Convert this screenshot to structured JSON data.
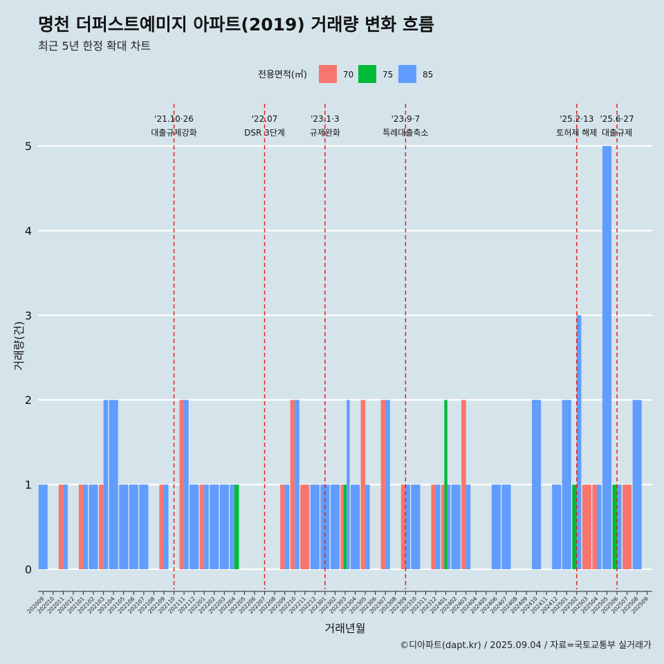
{
  "title": "명천 더퍼스트예미지 아파트(2019) 거래량 변화 흐름",
  "subtitle": "최근 5년 한정 확대 차트",
  "caption": "©디아파트(dapt.kr) / 2025.09.04 / 자료=국토교통부 실거래가",
  "colors": {
    "background": "#d5e3ea",
    "grid": "#ffffff",
    "event_line": "#e8201f",
    "70": "#f8766d",
    "75": "#00ba38",
    "85": "#619cff"
  },
  "chart_data": {
    "type": "bar",
    "stacking": "dodge",
    "xlabel": "거래년월",
    "ylabel": "거래량(건)",
    "ylim": [
      0,
      5
    ],
    "yticks": [
      0,
      1,
      2,
      3,
      4,
      5
    ],
    "grid": true,
    "legend": {
      "title": "전용면적(㎡)",
      "position": "top",
      "entries": [
        {
          "key": "70",
          "label": "70",
          "color": "#f8766d"
        },
        {
          "key": "75",
          "label": "75",
          "color": "#00ba38"
        },
        {
          "key": "85",
          "label": "85",
          "color": "#619cff"
        }
      ]
    },
    "categories": [
      "202009",
      "202010",
      "202011",
      "202012",
      "202101",
      "202102",
      "202103",
      "202104",
      "202105",
      "202106",
      "202107",
      "202108",
      "202109",
      "202110",
      "202111",
      "202112",
      "202201",
      "202202",
      "202203",
      "202204",
      "202205",
      "202206",
      "202207",
      "202208",
      "202209",
      "202210",
      "202211",
      "202212",
      "202301",
      "202302",
      "202303",
      "202304",
      "202305",
      "202306",
      "202307",
      "202308",
      "202309",
      "202310",
      "202311",
      "202312",
      "202401",
      "202402",
      "202403",
      "202404",
      "202405",
      "202406",
      "202407",
      "202408",
      "202409",
      "202410",
      "202411",
      "202412",
      "202501",
      "202502",
      "202503",
      "202504",
      "202505",
      "202506",
      "202507",
      "202508",
      "202509"
    ],
    "bars": [
      {
        "month": "202009",
        "groups": [
          {
            "area": "85",
            "value": 1
          }
        ]
      },
      {
        "month": "202011",
        "groups": [
          {
            "area": "70",
            "value": 1
          },
          {
            "area": "85",
            "value": 1
          }
        ]
      },
      {
        "month": "202101",
        "groups": [
          {
            "area": "70",
            "value": 1
          },
          {
            "area": "85",
            "value": 1
          }
        ]
      },
      {
        "month": "202102",
        "groups": [
          {
            "area": "85",
            "value": 1
          }
        ]
      },
      {
        "month": "202103",
        "groups": [
          {
            "area": "70",
            "value": 1
          },
          {
            "area": "85",
            "value": 2
          }
        ]
      },
      {
        "month": "202104",
        "groups": [
          {
            "area": "85",
            "value": 2
          }
        ]
      },
      {
        "month": "202105",
        "groups": [
          {
            "area": "85",
            "value": 1
          }
        ]
      },
      {
        "month": "202106",
        "groups": [
          {
            "area": "85",
            "value": 1
          }
        ]
      },
      {
        "month": "202107",
        "groups": [
          {
            "area": "85",
            "value": 1
          }
        ]
      },
      {
        "month": "202109",
        "groups": [
          {
            "area": "70",
            "value": 1
          },
          {
            "area": "85",
            "value": 1
          }
        ]
      },
      {
        "month": "202111",
        "groups": [
          {
            "area": "70",
            "value": 2
          },
          {
            "area": "85",
            "value": 2
          }
        ]
      },
      {
        "month": "202112",
        "groups": [
          {
            "area": "85",
            "value": 1
          }
        ]
      },
      {
        "month": "202201",
        "groups": [
          {
            "area": "70",
            "value": 1
          },
          {
            "area": "85",
            "value": 1
          }
        ]
      },
      {
        "month": "202202",
        "groups": [
          {
            "area": "85",
            "value": 1
          }
        ]
      },
      {
        "month": "202203",
        "groups": [
          {
            "area": "85",
            "value": 1
          }
        ]
      },
      {
        "month": "202204",
        "groups": [
          {
            "area": "85",
            "value": 1
          },
          {
            "area": "75",
            "value": 1
          }
        ]
      },
      {
        "month": "202209",
        "groups": [
          {
            "area": "70",
            "value": 1
          },
          {
            "area": "85",
            "value": 1
          }
        ]
      },
      {
        "month": "202210",
        "groups": [
          {
            "area": "70",
            "value": 2
          },
          {
            "area": "85",
            "value": 2
          }
        ]
      },
      {
        "month": "202211",
        "groups": [
          {
            "area": "70",
            "value": 1
          }
        ]
      },
      {
        "month": "202212",
        "groups": [
          {
            "area": "85",
            "value": 1
          }
        ]
      },
      {
        "month": "202301",
        "groups": [
          {
            "area": "85",
            "value": 1
          }
        ]
      },
      {
        "month": "202302",
        "groups": [
          {
            "area": "85",
            "value": 1
          }
        ]
      },
      {
        "month": "202303",
        "groups": [
          {
            "area": "70",
            "value": 1
          },
          {
            "area": "75",
            "value": 1
          },
          {
            "area": "85",
            "value": 2
          }
        ]
      },
      {
        "month": "202304",
        "groups": [
          {
            "area": "85",
            "value": 1
          }
        ]
      },
      {
        "month": "202305",
        "groups": [
          {
            "area": "70",
            "value": 2
          },
          {
            "area": "85",
            "value": 1
          }
        ]
      },
      {
        "month": "202307",
        "groups": [
          {
            "area": "70",
            "value": 2
          },
          {
            "area": "85",
            "value": 2
          }
        ]
      },
      {
        "month": "202309",
        "groups": [
          {
            "area": "70",
            "value": 1
          },
          {
            "area": "85",
            "value": 1
          }
        ]
      },
      {
        "month": "202310",
        "groups": [
          {
            "area": "85",
            "value": 1
          }
        ]
      },
      {
        "month": "202312",
        "groups": [
          {
            "area": "70",
            "value": 1
          },
          {
            "area": "85",
            "value": 1
          }
        ]
      },
      {
        "month": "202401",
        "groups": [
          {
            "area": "70",
            "value": 1
          },
          {
            "area": "75",
            "value": 2
          },
          {
            "area": "85",
            "value": 1
          }
        ]
      },
      {
        "month": "202402",
        "groups": [
          {
            "area": "85",
            "value": 1
          }
        ]
      },
      {
        "month": "202403",
        "groups": [
          {
            "area": "70",
            "value": 2
          },
          {
            "area": "85",
            "value": 1
          }
        ]
      },
      {
        "month": "202406",
        "groups": [
          {
            "area": "85",
            "value": 1
          }
        ]
      },
      {
        "month": "202407",
        "groups": [
          {
            "area": "85",
            "value": 1
          }
        ]
      },
      {
        "month": "202410",
        "groups": [
          {
            "area": "85",
            "value": 2
          }
        ]
      },
      {
        "month": "202412",
        "groups": [
          {
            "area": "85",
            "value": 1
          }
        ]
      },
      {
        "month": "202501",
        "groups": [
          {
            "area": "85",
            "value": 2
          }
        ]
      },
      {
        "month": "202502",
        "groups": [
          {
            "area": "75",
            "value": 1
          },
          {
            "area": "85",
            "value": 3
          }
        ]
      },
      {
        "month": "202503",
        "groups": [
          {
            "area": "70",
            "value": 1
          }
        ]
      },
      {
        "month": "202504",
        "groups": [
          {
            "area": "70",
            "value": 1
          },
          {
            "area": "85",
            "value": 1
          }
        ]
      },
      {
        "month": "202505",
        "groups": [
          {
            "area": "85",
            "value": 5
          }
        ]
      },
      {
        "month": "202506",
        "groups": [
          {
            "area": "75",
            "value": 1
          },
          {
            "area": "85",
            "value": 1
          }
        ]
      },
      {
        "month": "202507",
        "groups": [
          {
            "area": "70",
            "value": 1
          }
        ]
      },
      {
        "month": "202508",
        "groups": [
          {
            "area": "85",
            "value": 2
          }
        ]
      }
    ],
    "events": [
      {
        "month": "202110",
        "date": "'21.10·26",
        "label": "대출규제강화"
      },
      {
        "month": "202207",
        "date": "'22.07",
        "label": "DSR 3단계"
      },
      {
        "month": "202301",
        "date": "'23.1·3",
        "label": "규제완화"
      },
      {
        "month": "202309",
        "date": "'23.9·7",
        "label": "특례대출축소"
      },
      {
        "month": "202502",
        "date": "'25.2·13",
        "label": "토허제 해제"
      },
      {
        "month": "202506",
        "date": "'25.6·27",
        "label": "대출규제"
      }
    ]
  }
}
